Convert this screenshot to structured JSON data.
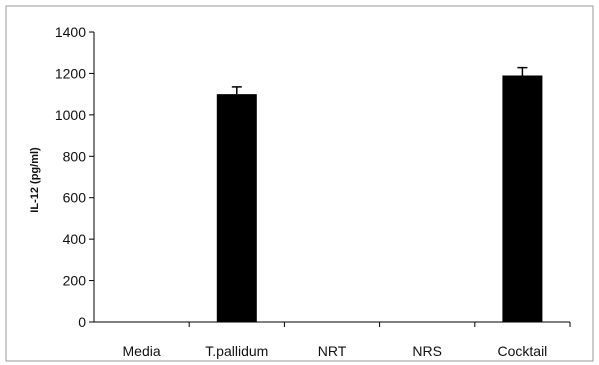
{
  "chart_data": {
    "type": "bar",
    "title": "",
    "xlabel": "",
    "ylabel": "IL-12 (pg/ml)",
    "categories": [
      "Media",
      "T.pallidum",
      "NRT",
      "NRS",
      "Cocktail"
    ],
    "values": [
      0,
      1100,
      0,
      0,
      1190
    ],
    "errors": [
      0,
      35,
      0,
      0,
      38
    ],
    "ylim": [
      0,
      1400
    ],
    "yticks": [
      0,
      200,
      400,
      600,
      800,
      1000,
      1200,
      1400
    ],
    "grid": false,
    "bar_color": "#000000"
  }
}
